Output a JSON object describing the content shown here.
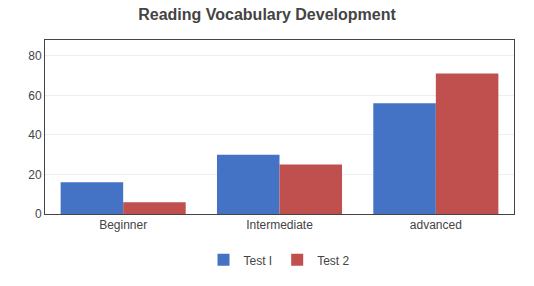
{
  "chart_data": {
    "type": "bar",
    "title": "Reading Vocabulary Development",
    "categories": [
      "Beginner",
      "Intermediate",
      "advanced"
    ],
    "series": [
      {
        "name": "Test I",
        "color": "#4472C4",
        "values": [
          16,
          30,
          56
        ]
      },
      {
        "name": "Test 2",
        "color": "#C0504D",
        "values": [
          6,
          25,
          71
        ]
      }
    ],
    "ylim": [
      0,
      88
    ],
    "yticks": [
      0,
      20,
      40,
      60,
      80
    ],
    "grid": true,
    "legend": "bottom"
  }
}
